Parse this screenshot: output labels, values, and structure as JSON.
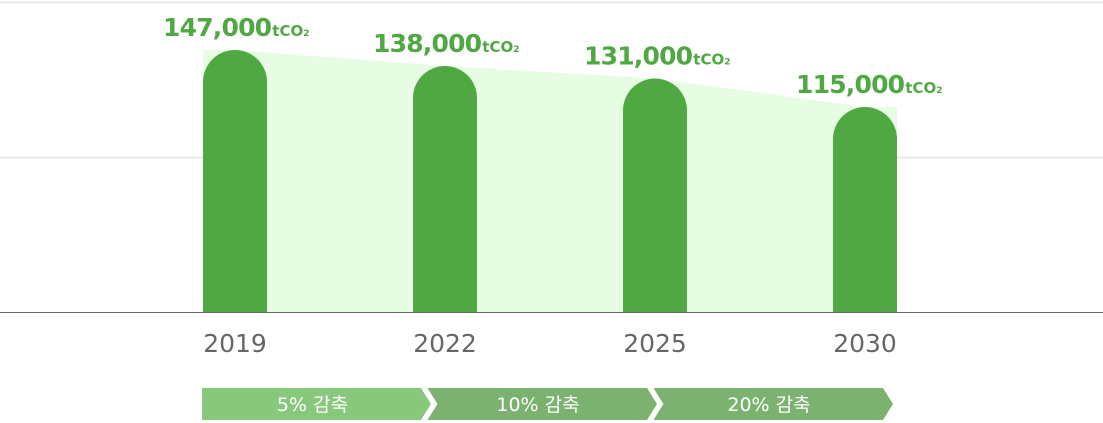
{
  "chart_data": {
    "type": "bar",
    "categories": [
      "2019",
      "2022",
      "2025",
      "2030"
    ],
    "values": [
      147000,
      138000,
      131000,
      115000
    ],
    "unit": "tCO",
    "unit_sub": "2",
    "reductions": [
      "5% 감축",
      "10% 감축",
      "20% 감축"
    ],
    "ylim": [
      0,
      147000
    ],
    "grid": true,
    "colors": {
      "bar": "#4fa842",
      "value_label": "#4fa842",
      "trend_fill": "#e6fde3",
      "step_1": "#88c87d",
      "step_2": "#7bb26f",
      "step_3": "#7bb26f",
      "tick": "#666666",
      "grid": "#e4e4e4",
      "axis": "#666666"
    }
  }
}
